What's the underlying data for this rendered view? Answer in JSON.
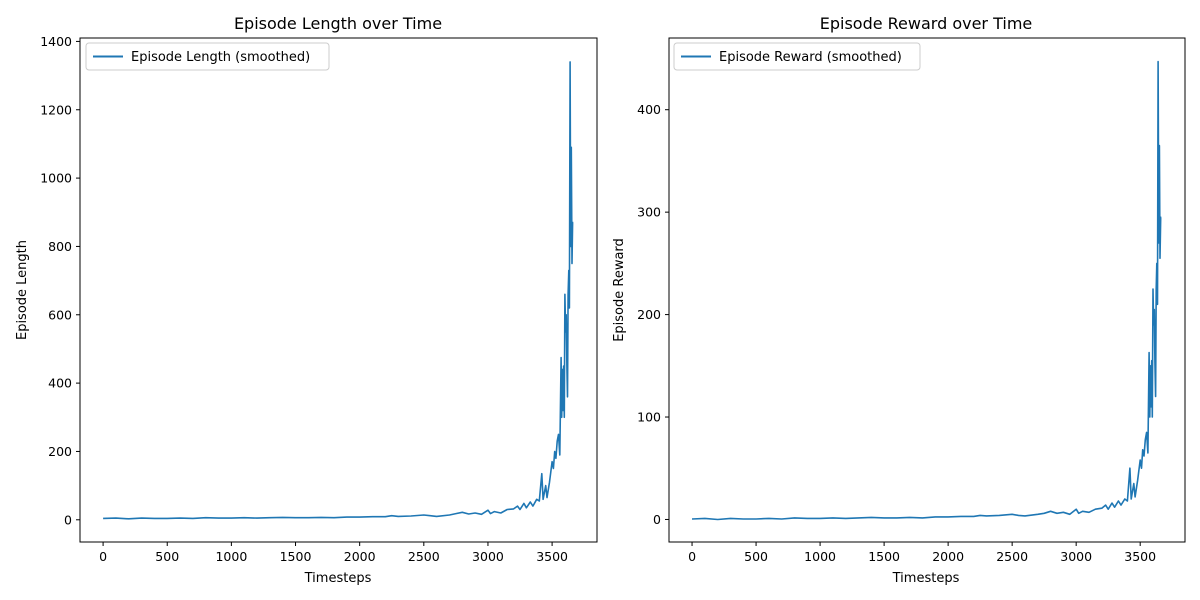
{
  "chart_data": [
    {
      "type": "line",
      "title": "Episode Length over Time",
      "xlabel": "Timesteps",
      "ylabel": "Episode Length",
      "xlim": [
        -180,
        3850
      ],
      "ylim": [
        -65,
        1410
      ],
      "xticks": [
        0,
        500,
        1000,
        1500,
        2000,
        2500,
        3000,
        3500
      ],
      "yticks": [
        0,
        200,
        400,
        600,
        800,
        1000,
        1200,
        1400
      ],
      "grid": false,
      "legend": "upper-left",
      "series": [
        {
          "name": "Episode Length (smoothed)",
          "color": "#1f77b4",
          "x": [
            0,
            100,
            200,
            300,
            400,
            500,
            600,
            700,
            800,
            900,
            1000,
            1100,
            1200,
            1300,
            1400,
            1500,
            1600,
            1700,
            1800,
            1900,
            2000,
            2100,
            2200,
            2250,
            2300,
            2400,
            2500,
            2550,
            2600,
            2700,
            2750,
            2800,
            2850,
            2900,
            2950,
            3000,
            3020,
            3050,
            3100,
            3150,
            3200,
            3230,
            3250,
            3280,
            3300,
            3330,
            3350,
            3380,
            3400,
            3420,
            3430,
            3450,
            3460,
            3480,
            3500,
            3510,
            3520,
            3530,
            3540,
            3550,
            3560,
            3570,
            3575,
            3580,
            3585,
            3590,
            3595,
            3600,
            3605,
            3610,
            3615,
            3620,
            3625,
            3630,
            3635,
            3640,
            3645,
            3650,
            3655,
            3660,
            3665
          ],
          "y": [
            4,
            5,
            3,
            5,
            4,
            4,
            5,
            4,
            6,
            5,
            5,
            6,
            5,
            6,
            7,
            6,
            6,
            7,
            6,
            8,
            8,
            9,
            9,
            12,
            10,
            11,
            14,
            12,
            10,
            14,
            18,
            22,
            17,
            20,
            16,
            28,
            18,
            24,
            20,
            30,
            32,
            40,
            30,
            48,
            35,
            52,
            40,
            60,
            55,
            135,
            60,
            100,
            65,
            110,
            170,
            150,
            200,
            180,
            230,
            250,
            190,
            475,
            300,
            440,
            320,
            450,
            300,
            660,
            550,
            600,
            450,
            360,
            660,
            730,
            620,
            1340,
            800,
            1090,
            750,
            870,
            870
          ]
        }
      ]
    },
    {
      "type": "line",
      "title": "Episode Reward over Time",
      "xlabel": "Timesteps",
      "ylabel": "Episode Reward",
      "xlim": [
        -180,
        3850
      ],
      "ylim": [
        -22,
        470
      ],
      "xticks": [
        0,
        500,
        1000,
        1500,
        2000,
        2500,
        3000,
        3500
      ],
      "yticks": [
        0,
        100,
        200,
        300,
        400
      ],
      "grid": false,
      "legend": "upper-left",
      "series": [
        {
          "name": "Episode Reward (smoothed)",
          "color": "#1f77b4",
          "x": [
            0,
            100,
            200,
            300,
            400,
            500,
            600,
            700,
            800,
            900,
            1000,
            1100,
            1200,
            1300,
            1400,
            1500,
            1600,
            1700,
            1800,
            1900,
            2000,
            2100,
            2200,
            2250,
            2300,
            2400,
            2500,
            2550,
            2600,
            2700,
            2750,
            2800,
            2850,
            2900,
            2950,
            3000,
            3020,
            3050,
            3100,
            3150,
            3200,
            3230,
            3250,
            3280,
            3300,
            3330,
            3350,
            3380,
            3400,
            3420,
            3430,
            3450,
            3460,
            3480,
            3500,
            3510,
            3520,
            3530,
            3540,
            3550,
            3560,
            3570,
            3575,
            3580,
            3585,
            3590,
            3595,
            3600,
            3605,
            3610,
            3615,
            3620,
            3625,
            3630,
            3635,
            3640,
            3645,
            3650,
            3655,
            3660,
            3665
          ],
          "y": [
            0.5,
            1,
            0,
            1,
            0.5,
            0.5,
            1,
            0.5,
            1.5,
            1,
            1,
            1.5,
            1,
            1.5,
            2,
            1.5,
            1.5,
            2,
            1.5,
            2.5,
            2.5,
            3,
            3,
            4,
            3.5,
            4,
            5,
            4,
            3.5,
            5,
            6,
            8,
            6,
            7,
            5,
            10,
            6,
            8,
            7,
            10,
            11,
            14,
            10,
            16,
            12,
            18,
            14,
            20,
            18,
            50,
            20,
            35,
            22,
            38,
            58,
            50,
            68,
            62,
            78,
            85,
            65,
            163,
            100,
            150,
            110,
            155,
            100,
            225,
            190,
            205,
            155,
            120,
            225,
            250,
            210,
            447,
            270,
            365,
            255,
            295,
            295
          ]
        }
      ]
    }
  ]
}
